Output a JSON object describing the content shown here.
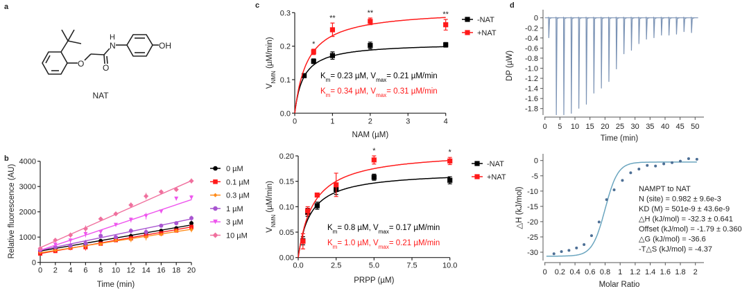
{
  "panel_labels": {
    "a": "a",
    "b": "b",
    "c": "c",
    "d": "d"
  },
  "structure": {
    "name": "NAT",
    "atoms": {
      "O_ether": "O",
      "O_carbonyl": "O",
      "N": "N",
      "H": "H",
      "OH": "OH"
    }
  },
  "chart_data": [
    {
      "id": "b",
      "type": "line",
      "xlabel": "Time (min)",
      "ylabel": "Relative fluorescence (AU)",
      "xlim": [
        0,
        20
      ],
      "ylim": [
        0,
        4000
      ],
      "xticks": [
        0,
        2,
        4,
        6,
        8,
        10,
        12,
        14,
        16,
        18,
        20
      ],
      "yticks": [
        0,
        1000,
        2000,
        3000,
        4000
      ],
      "legend": "right",
      "x": [
        0,
        2,
        4,
        6,
        8,
        10,
        12,
        14,
        16,
        18,
        20
      ],
      "series": [
        {
          "name": "0 µM",
          "color": "#000000",
          "marker": "circle",
          "values": [
            450,
            560,
            610,
            700,
            850,
            950,
            1040,
            1150,
            1250,
            1350,
            1550
          ],
          "fit": [
            450,
            1480
          ]
        },
        {
          "name": "0.1 µM",
          "color": "#ff1a1a",
          "marker": "square",
          "values": [
            350,
            450,
            580,
            600,
            740,
            880,
            950,
            1050,
            1150,
            1260,
            1400
          ],
          "fit": [
            350,
            1400
          ]
        },
        {
          "name": "0.3 µM",
          "color": "#ff8c1a",
          "marker": "diamond-small",
          "values": [
            400,
            480,
            600,
            650,
            720,
            890,
            900,
            1000,
            1100,
            1250,
            1290
          ],
          "fit": [
            380,
            1310
          ]
        },
        {
          "name": "1 µM",
          "color": "#a855d0",
          "marker": "circle",
          "values": [
            480,
            600,
            660,
            760,
            1050,
            1000,
            1250,
            1200,
            1450,
            1550,
            1750
          ],
          "fit": [
            480,
            1720
          ]
        },
        {
          "name": "3 µM",
          "color": "#ee55ee",
          "marker": "triangle-down",
          "values": [
            500,
            700,
            860,
            1120,
            1200,
            1480,
            1680,
            1830,
            2010,
            2520,
            2560
          ],
          "fit": [
            480,
            2480
          ]
        },
        {
          "name": "10 µM",
          "color": "#f0709e",
          "marker": "diamond",
          "values": [
            550,
            880,
            1080,
            1330,
            1720,
            1920,
            2270,
            2620,
            2790,
            2880,
            3220
          ],
          "fit": [
            580,
            3230
          ]
        }
      ]
    },
    {
      "id": "c-nam",
      "type": "scatter",
      "xlabel": "NAM (µM)",
      "ylabel": {
        "main": "V",
        "sub": "NMN",
        "rest": " (µM/min)"
      },
      "xlim": [
        0,
        4
      ],
      "ylim": [
        0,
        0.3
      ],
      "xticks": [
        "0",
        "1",
        "2",
        "3",
        "4"
      ],
      "yticks": [
        "0.0",
        "0.1",
        "0.2",
        "0.3"
      ],
      "legend": "top-right",
      "series": [
        {
          "name": "-NAT",
          "color": "#000000",
          "x": [
            0.25,
            0.5,
            1,
            2,
            4
          ],
          "values": [
            0.112,
            0.155,
            0.172,
            0.202,
            0.204
          ],
          "errors": [
            0.005,
            0.007,
            0.011,
            0.01,
            0.007
          ],
          "Km": 0.23,
          "Vmax": 0.21,
          "annotation": [
            [
              "K",
              ""
            ],
            [
              "m",
              "sub"
            ],
            [
              "= 0.23 µM, V",
              ""
            ],
            [
              "max",
              "sub"
            ],
            [
              "= 0.21 µM/min",
              ""
            ]
          ]
        },
        {
          "name": "+NAT",
          "color": "#ff1a1a",
          "x": [
            0.5,
            1,
            2,
            4
          ],
          "values": [
            0.183,
            0.249,
            0.274,
            0.264
          ],
          "errors": [
            0.008,
            0.02,
            0.01,
            0.016
          ],
          "Km": 0.34,
          "Vmax": 0.31,
          "annotation": [
            [
              "K",
              ""
            ],
            [
              "m",
              "sub"
            ],
            [
              "= 0.34 µM, V",
              ""
            ],
            [
              "max",
              "sub"
            ],
            [
              "= 0.31 µM/min",
              ""
            ]
          ]
        }
      ],
      "significance": [
        {
          "x": 0.5,
          "label": "*"
        },
        {
          "x": 1,
          "label": "**"
        },
        {
          "x": 2,
          "label": "**"
        },
        {
          "x": 4,
          "label": "**"
        }
      ]
    },
    {
      "id": "c-prpp",
      "type": "scatter",
      "xlabel": "PRPP (µM)",
      "ylabel": {
        "main": "V",
        "sub": "NMN",
        "rest": " (µM/min)"
      },
      "xlim": [
        0,
        10
      ],
      "ylim": [
        0,
        0.2
      ],
      "xticks": [
        "0.0",
        "2.5",
        "5.0",
        "7.5",
        "10.0"
      ],
      "yticks": [
        "0.00",
        "0.05",
        "0.10",
        "0.15",
        "0.20"
      ],
      "legend": "top-right",
      "series": [
        {
          "name": "-NAT",
          "color": "#000000",
          "x": [
            0.3125,
            0.625,
            1.25,
            2.5,
            5,
            10
          ],
          "values": [
            0.033,
            0.089,
            0.102,
            0.134,
            0.158,
            0.152
          ],
          "errors": [
            0.008,
            0.008,
            0.007,
            0.01,
            0.006,
            0.007
          ],
          "Km": 0.8,
          "Vmax": 0.17,
          "annotation": [
            [
              "K",
              ""
            ],
            [
              "m",
              "sub"
            ],
            [
              "= 0.8 µM, V",
              ""
            ],
            [
              "max",
              "sub"
            ],
            [
              "= 0.17 µM/min",
              ""
            ]
          ]
        },
        {
          "name": "+NAT",
          "color": "#ff1a1a",
          "x": [
            0.3125,
            0.625,
            1.25,
            2.5,
            5,
            10
          ],
          "values": [
            0.032,
            0.092,
            0.123,
            0.143,
            0.192,
            0.19
          ],
          "errors": [
            0.015,
            0.008,
            0.004,
            0.023,
            0.008,
            0.007
          ],
          "Km": 1.0,
          "Vmax": 0.21,
          "annotation": [
            [
              "K",
              ""
            ],
            [
              "m",
              "sub"
            ],
            [
              "= 1.0 µM, V",
              ""
            ],
            [
              "max",
              "sub"
            ],
            [
              "= 0.21 µM/min",
              ""
            ]
          ]
        }
      ],
      "significance": [
        {
          "x": 5,
          "label": "*"
        },
        {
          "x": 10,
          "label": "*"
        }
      ]
    },
    {
      "id": "d-thermogram",
      "type": "line",
      "xlabel": "Time (min)",
      "ylabel": "DP (µW)",
      "xlim": [
        0,
        52
      ],
      "ylim": [
        -1.95,
        0.1
      ],
      "xticks": [
        0,
        5,
        10,
        15,
        20,
        25,
        30,
        35,
        40,
        45,
        50
      ],
      "yticks": [
        "0",
        "-0.2",
        "-0.4",
        "-0.6",
        "-0.8",
        "-1.0",
        "-1.2",
        "-1.4",
        "-1.6",
        "-1.8"
      ],
      "color": "#7b93b5",
      "injections": {
        "time": [
          1.3,
          3.8,
          6.3,
          8.8,
          11.3,
          13.8,
          16.3,
          18.8,
          21.3,
          23.8,
          26.3,
          28.8,
          31.3,
          33.8,
          36.3,
          38.8,
          41.3,
          43.8,
          46.3,
          48.8
        ],
        "peak": [
          -0.4,
          -1.93,
          -1.93,
          -1.9,
          -1.8,
          -1.72,
          -1.5,
          -1.4,
          -1.27,
          -1.02,
          -0.72,
          -0.65,
          -0.52,
          -0.43,
          -0.4,
          -0.35,
          -0.35,
          -0.33,
          -0.28,
          -0.3
        ]
      }
    },
    {
      "id": "d-isotherm",
      "type": "scatter",
      "xlabel": "Molar Ratio",
      "ylabel": "△H (kJ/mol)",
      "xlim": [
        0,
        2.1
      ],
      "ylim": [
        -32,
        1
      ],
      "xticks": [
        "0",
        "0.2",
        "0.4",
        "0.6",
        "0.8",
        "1",
        "1.2",
        "1.4",
        "1.6",
        "1.8",
        "2"
      ],
      "yticks": [
        "0",
        "-5",
        "-10",
        "-15",
        "-20",
        "-25",
        "-30"
      ],
      "color": "#6aa5bf",
      "point_color": "#4d6f95",
      "x": [
        0.12,
        0.22,
        0.32,
        0.42,
        0.52,
        0.62,
        0.72,
        0.82,
        0.92,
        1.03,
        1.14,
        1.25,
        1.36,
        1.47,
        1.58,
        1.69,
        1.8,
        1.91,
        2.02
      ],
      "values": [
        -30.5,
        -29.8,
        -29.4,
        -28.6,
        -27.5,
        -24.6,
        -20.1,
        -12.8,
        -9.6,
        -6.5,
        -4.0,
        -2.8,
        -1.6,
        -1.8,
        -1.1,
        -0.7,
        -0.2,
        0.6,
        0.4
      ],
      "fit_text": [
        "NAMPT to NAT",
        "N (site) = 0.982 ± 9.6e-3",
        "KD (M) = 501e-9 ± 43.6e-9",
        "△H (kJ/mol) = -32.3 ± 0.641",
        "Offset (kJ/mol) = -1.79 ± 0.360",
        "△G (kJ/mol) = -36.6",
        "-T△S (kJ/mol) = -4.37"
      ]
    }
  ]
}
